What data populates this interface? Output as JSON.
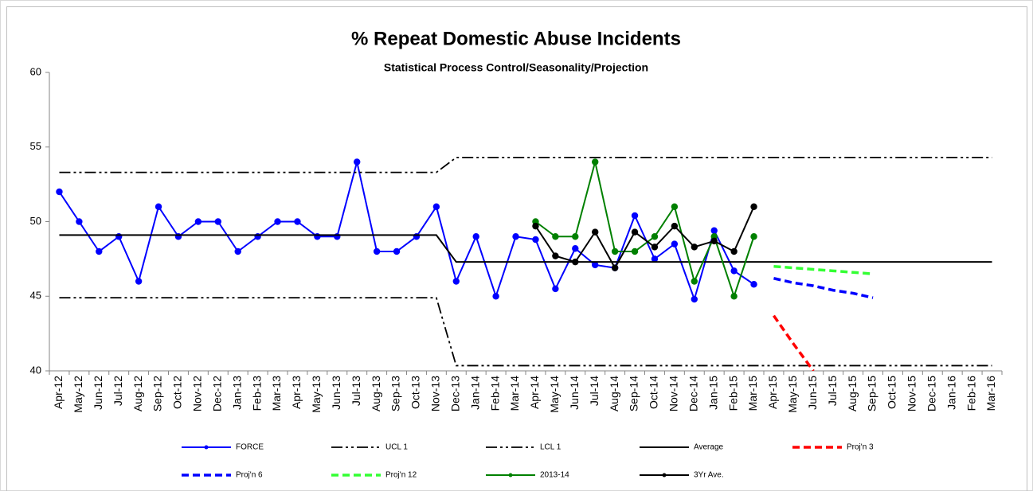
{
  "chart_data": {
    "type": "line",
    "title": "% Repeat Domestic Abuse Incidents",
    "subtitle": "Statistical Process Control/Seasonality/Projection",
    "categories": [
      "Apr-12",
      "May-12",
      "Jun-12",
      "Jul-12",
      "Aug-12",
      "Sep-12",
      "Oct-12",
      "Nov-12",
      "Dec-12",
      "Jan-13",
      "Feb-13",
      "Mar-13",
      "Apr-13",
      "May-13",
      "Jun-13",
      "Jul-13",
      "Aug-13",
      "Sep-13",
      "Oct-13",
      "Nov-13",
      "Dec-13",
      "Jan-14",
      "Feb-14",
      "Mar-14",
      "Apr-14",
      "May-14",
      "Jun-14",
      "Jul-14",
      "Aug-14",
      "Sep-14",
      "Oct-14",
      "Nov-14",
      "Dec-14",
      "Jan-15",
      "Feb-15",
      "Mar-15",
      "Apr-15",
      "May-15",
      "Jun-15",
      "Jul-15",
      "Aug-15",
      "Sep-15",
      "Oct-15",
      "Nov-15",
      "Dec-15",
      "Jan-16",
      "Feb-16",
      "Mar-16"
    ],
    "ylim": [
      40,
      60
    ],
    "yticks": [
      40,
      45,
      50,
      55,
      60
    ],
    "grid": false,
    "series": [
      {
        "name": "FORCE",
        "color": "#0000ff",
        "dash": "solid",
        "marker": true,
        "values": [
          52,
          50,
          48,
          49,
          46,
          51,
          49,
          50,
          50,
          48,
          49,
          50,
          50,
          49,
          49,
          54,
          48,
          48,
          49,
          51,
          46,
          49,
          45,
          49,
          48.8,
          45.5,
          48.2,
          47.1,
          46.9,
          50.4,
          47.5,
          48.5,
          44.8,
          49.4,
          46.7,
          45.8,
          null,
          null,
          null,
          null,
          null,
          null,
          null,
          null,
          null,
          null,
          null,
          null
        ]
      },
      {
        "name": "UCL 1",
        "color": "#000000",
        "dash": "dashdotdot",
        "marker": false,
        "values": [
          53.3,
          53.3,
          53.3,
          53.3,
          53.3,
          53.3,
          53.3,
          53.3,
          53.3,
          53.3,
          53.3,
          53.3,
          53.3,
          53.3,
          53.3,
          53.3,
          53.3,
          53.3,
          53.3,
          53.3,
          54.3,
          54.3,
          54.3,
          54.3,
          54.3,
          54.3,
          54.3,
          54.3,
          54.3,
          54.3,
          54.3,
          54.3,
          54.3,
          54.3,
          54.3,
          54.3,
          54.3,
          54.3,
          54.3,
          54.3,
          54.3,
          54.3,
          54.3,
          54.3,
          54.3,
          54.3,
          54.3,
          54.3
        ]
      },
      {
        "name": "LCL 1",
        "color": "#000000",
        "dash": "dashdotdot",
        "marker": false,
        "values": [
          44.9,
          44.9,
          44.9,
          44.9,
          44.9,
          44.9,
          44.9,
          44.9,
          44.9,
          44.9,
          44.9,
          44.9,
          44.9,
          44.9,
          44.9,
          44.9,
          44.9,
          44.9,
          44.9,
          44.9,
          40.35,
          40.35,
          40.35,
          40.35,
          40.35,
          40.35,
          40.35,
          40.35,
          40.35,
          40.35,
          40.35,
          40.35,
          40.35,
          40.35,
          40.35,
          40.35,
          40.35,
          40.35,
          40.35,
          40.35,
          40.35,
          40.35,
          40.35,
          40.35,
          40.35,
          40.35,
          40.35,
          40.35
        ]
      },
      {
        "name": "Average",
        "color": "#000000",
        "dash": "solid",
        "marker": false,
        "values": [
          49.1,
          49.1,
          49.1,
          49.1,
          49.1,
          49.1,
          49.1,
          49.1,
          49.1,
          49.1,
          49.1,
          49.1,
          49.1,
          49.1,
          49.1,
          49.1,
          49.1,
          49.1,
          49.1,
          49.1,
          47.3,
          47.3,
          47.3,
          47.3,
          47.3,
          47.3,
          47.3,
          47.3,
          47.3,
          47.3,
          47.3,
          47.3,
          47.3,
          47.3,
          47.3,
          47.3,
          47.3,
          47.3,
          47.3,
          47.3,
          47.3,
          47.3,
          47.3,
          47.3,
          47.3,
          47.3,
          47.3,
          47.3
        ]
      },
      {
        "name": "Proj'n 3",
        "color": "#ff0000",
        "dash": "dashed",
        "marker": false,
        "values": [
          null,
          null,
          null,
          null,
          null,
          null,
          null,
          null,
          null,
          null,
          null,
          null,
          null,
          null,
          null,
          null,
          null,
          null,
          null,
          null,
          null,
          null,
          null,
          null,
          null,
          null,
          null,
          null,
          null,
          null,
          null,
          null,
          null,
          null,
          null,
          null,
          43.7,
          41.8,
          40,
          null,
          null,
          null,
          null,
          null,
          null,
          null,
          null,
          null
        ]
      },
      {
        "name": "Proj'n 6",
        "color": "#0000ff",
        "dash": "dashed",
        "marker": false,
        "values": [
          null,
          null,
          null,
          null,
          null,
          null,
          null,
          null,
          null,
          null,
          null,
          null,
          null,
          null,
          null,
          null,
          null,
          null,
          null,
          null,
          null,
          null,
          null,
          null,
          null,
          null,
          null,
          null,
          null,
          null,
          null,
          null,
          null,
          null,
          null,
          null,
          46.2,
          45.9,
          45.7,
          45.4,
          45.2,
          44.9,
          null,
          null,
          null,
          null,
          null,
          null
        ]
      },
      {
        "name": "Proj'n 12",
        "color": "#33ff33",
        "dash": "dashed",
        "marker": false,
        "values": [
          null,
          null,
          null,
          null,
          null,
          null,
          null,
          null,
          null,
          null,
          null,
          null,
          null,
          null,
          null,
          null,
          null,
          null,
          null,
          null,
          null,
          null,
          null,
          null,
          null,
          null,
          null,
          null,
          null,
          null,
          null,
          null,
          null,
          null,
          null,
          null,
          47.0,
          46.9,
          46.8,
          46.7,
          46.6,
          46.5,
          null,
          null,
          null,
          null,
          null,
          null
        ]
      },
      {
        "name": "2013-14",
        "color": "#008000",
        "dash": "solid",
        "marker": true,
        "values": [
          null,
          null,
          null,
          null,
          null,
          null,
          null,
          null,
          null,
          null,
          null,
          null,
          null,
          null,
          null,
          null,
          null,
          null,
          null,
          null,
          null,
          null,
          null,
          null,
          50,
          49,
          49,
          54,
          48,
          48,
          49,
          51,
          46,
          49,
          45,
          49,
          null,
          null,
          null,
          null,
          null,
          null,
          null,
          null,
          null,
          null,
          null,
          null
        ]
      },
      {
        "name": "3Yr Ave.",
        "color": "#000000",
        "dash": "solid",
        "marker": true,
        "values": [
          null,
          null,
          null,
          null,
          null,
          null,
          null,
          null,
          null,
          null,
          null,
          null,
          null,
          null,
          null,
          null,
          null,
          null,
          null,
          null,
          null,
          null,
          null,
          null,
          49.7,
          47.7,
          47.3,
          49.3,
          46.9,
          49.3,
          48.3,
          49.7,
          48.3,
          48.7,
          48.0,
          51.0,
          null,
          null,
          null,
          null,
          null,
          null,
          null,
          null,
          null,
          null,
          null,
          null
        ]
      }
    ]
  }
}
